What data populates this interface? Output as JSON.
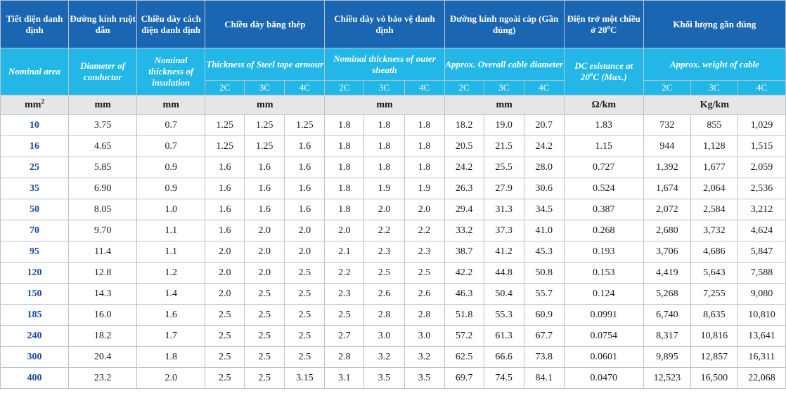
{
  "header_vn": {
    "area": "Tiết diện danh định",
    "conductor": "Đường kính ruột dẫn",
    "insulation": "Chiều dày cách điện danh định",
    "armour": "Chiều dày băng thép",
    "sheath": "Chiều dày vỏ bảo vệ danh định",
    "overall": "Đường kính ngoài cáp (Gần đúng)",
    "resistance_prefix": "Điện trở một chiều ở 20",
    "resistance_sup": "o",
    "resistance_suffix": "C",
    "weight": "Khối lượng gần đúng"
  },
  "header_en": {
    "area": "Nominal area",
    "conductor": "Diameter of conductor",
    "insulation": "Nominal thickness of insulation",
    "armour": "Thickness of Steel tape armour",
    "sheath": "Nominal thickness of outer sheath",
    "overall": "Approx. Overall cable diameter",
    "resistance_line1": "DC esistance at",
    "resistance_prefix": "20",
    "resistance_sup": "o",
    "resistance_suffix": "C (Max.)",
    "weight": "Approx. weight of cable"
  },
  "core_labels": [
    "2C",
    "3C",
    "4C"
  ],
  "units": {
    "area": "mm",
    "area_sup": "2",
    "conductor": "mm",
    "insulation": "mm",
    "armour": "mm",
    "sheath": "mm",
    "overall": "mm",
    "resistance": "Ω/km",
    "weight": "Kg/km"
  },
  "rows": [
    {
      "area": "10",
      "conductor": "3.75",
      "insulation": "0.7",
      "armour": [
        "1.25",
        "1.25",
        "1.25"
      ],
      "sheath": [
        "1.8",
        "1.8",
        "1.8"
      ],
      "overall": [
        "18.2",
        "19.0",
        "20.7"
      ],
      "resistance": "1.83",
      "weight": [
        "732",
        "855",
        "1,029"
      ]
    },
    {
      "area": "16",
      "conductor": "4.65",
      "insulation": "0.7",
      "armour": [
        "1.25",
        "1.25",
        "1.6"
      ],
      "sheath": [
        "1.8",
        "1.8",
        "1.8"
      ],
      "overall": [
        "20.5",
        "21.5",
        "24.2"
      ],
      "resistance": "1.15",
      "weight": [
        "944",
        "1,128",
        "1,515"
      ]
    },
    {
      "area": "25",
      "conductor": "5.85",
      "insulation": "0.9",
      "armour": [
        "1.6",
        "1.6",
        "1.6"
      ],
      "sheath": [
        "1.8",
        "1.8",
        "1.8"
      ],
      "overall": [
        "24.2",
        "25.5",
        "28.0"
      ],
      "resistance": "0.727",
      "weight": [
        "1,392",
        "1,677",
        "2,059"
      ]
    },
    {
      "area": "35",
      "conductor": "6.90",
      "insulation": "0.9",
      "armour": [
        "1.6",
        "1.6",
        "1.6"
      ],
      "sheath": [
        "1.8",
        "1.9",
        "1.9"
      ],
      "overall": [
        "26.3",
        "27.9",
        "30.6"
      ],
      "resistance": "0.524",
      "weight": [
        "1,674",
        "2,064",
        "2,536"
      ]
    },
    {
      "area": "50",
      "conductor": "8.05",
      "insulation": "1.0",
      "armour": [
        "1.6",
        "1.6",
        "1.6"
      ],
      "sheath": [
        "1.8",
        "2.0",
        "2.0"
      ],
      "overall": [
        "29.4",
        "31.3",
        "34.5"
      ],
      "resistance": "0.387",
      "weight": [
        "2,072",
        "2,584",
        "3,212"
      ]
    },
    {
      "area": "70",
      "conductor": "9.70",
      "insulation": "1.1",
      "armour": [
        "1.6",
        "2.0",
        "2.0"
      ],
      "sheath": [
        "2.0",
        "2.2",
        "2.2"
      ],
      "overall": [
        "33.2",
        "37.3",
        "41.0"
      ],
      "resistance": "0.268",
      "weight": [
        "2,680",
        "3,732",
        "4,624"
      ]
    },
    {
      "area": "95",
      "conductor": "11.4",
      "insulation": "1.1",
      "armour": [
        "2.0",
        "2.0",
        "2.0"
      ],
      "sheath": [
        "2.1",
        "2.3",
        "2.3"
      ],
      "overall": [
        "38.7",
        "41.2",
        "45.3"
      ],
      "resistance": "0.193",
      "weight": [
        "3,706",
        "4,686",
        "5,847"
      ]
    },
    {
      "area": "120",
      "conductor": "12.8",
      "insulation": "1.2",
      "armour": [
        "2.0",
        "2.0",
        "2.5"
      ],
      "sheath": [
        "2.2",
        "2.5",
        "2.5"
      ],
      "overall": [
        "42.2",
        "44.8",
        "50.8"
      ],
      "resistance": "0.153",
      "weight": [
        "4,419",
        "5,643",
        "7,588"
      ]
    },
    {
      "area": "150",
      "conductor": "14.3",
      "insulation": "1.4",
      "armour": [
        "2.0",
        "2.5",
        "2.5"
      ],
      "sheath": [
        "2.3",
        "2.6",
        "2.6"
      ],
      "overall": [
        "46.3",
        "50.4",
        "55.7"
      ],
      "resistance": "0.124",
      "weight": [
        "5,268",
        "7,255",
        "9,080"
      ]
    },
    {
      "area": "185",
      "conductor": "16.0",
      "insulation": "1.6",
      "armour": [
        "2.5",
        "2.5",
        "2.5"
      ],
      "sheath": [
        "2.5",
        "2.8",
        "2.8"
      ],
      "overall": [
        "51.8",
        "55.3",
        "60.9"
      ],
      "resistance": "0.0991",
      "weight": [
        "6,740",
        "8,635",
        "10,810"
      ]
    },
    {
      "area": "240",
      "conductor": "18.2",
      "insulation": "1.7",
      "armour": [
        "2.5",
        "2.5",
        "2.5"
      ],
      "sheath": [
        "2.7",
        "3.0",
        "3.0"
      ],
      "overall": [
        "57.2",
        "61.3",
        "67.7"
      ],
      "resistance": "0.0754",
      "weight": [
        "8,317",
        "10,816",
        "13,641"
      ]
    },
    {
      "area": "300",
      "conductor": "20.4",
      "insulation": "1.8",
      "armour": [
        "2.5",
        "2.5",
        "2.5"
      ],
      "sheath": [
        "2.8",
        "3.2",
        "3.2"
      ],
      "overall": [
        "62.5",
        "66.6",
        "73.8"
      ],
      "resistance": "0.0601",
      "weight": [
        "9,895",
        "12,857",
        "16,311"
      ]
    },
    {
      "area": "400",
      "conductor": "23.2",
      "insulation": "2.0",
      "armour": [
        "2.5",
        "2.5",
        "3.15"
      ],
      "sheath": [
        "3.1",
        "3.5",
        "3.5"
      ],
      "overall": [
        "69.7",
        "74.5",
        "84.1"
      ],
      "resistance": "0.0470",
      "weight": [
        "12,523",
        "16,500",
        "22,068"
      ]
    }
  ]
}
